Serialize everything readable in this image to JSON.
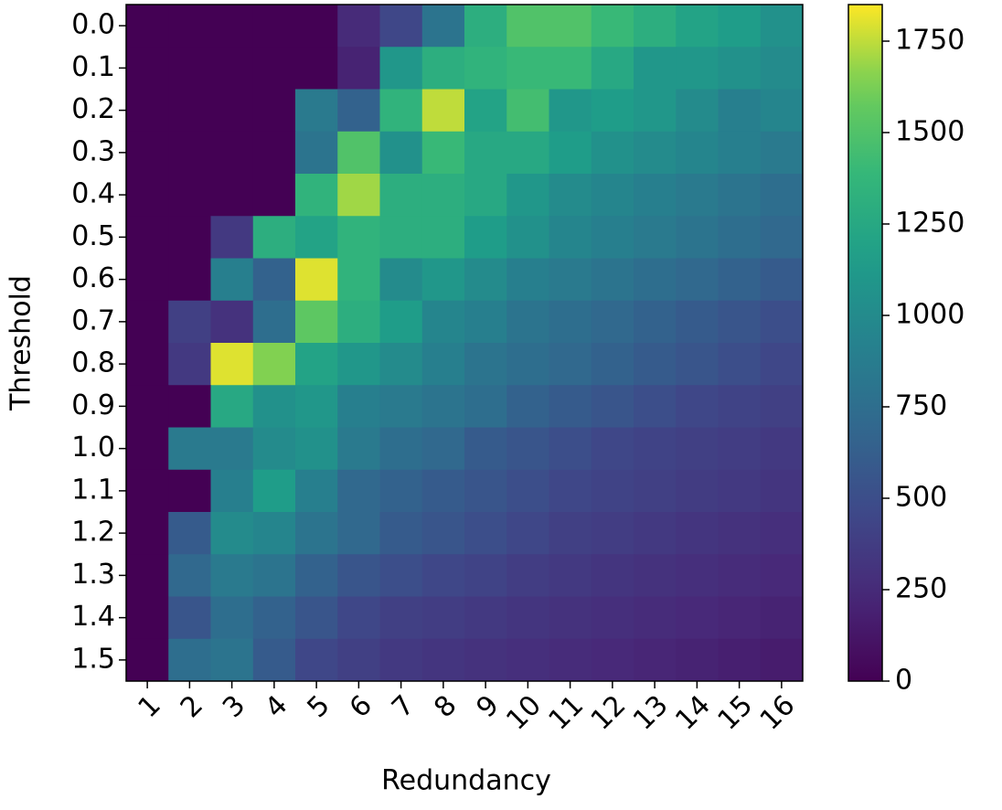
{
  "chart_data": {
    "type": "heatmap",
    "xlabel": "Redundancy",
    "ylabel": "Threshold",
    "x_categories": [
      "1",
      "2",
      "3",
      "4",
      "5",
      "6",
      "7",
      "8",
      "9",
      "10",
      "11",
      "12",
      "13",
      "14",
      "15",
      "16"
    ],
    "y_categories": [
      "0.0",
      "0.1",
      "0.2",
      "0.3",
      "0.4",
      "0.5",
      "0.6",
      "0.7",
      "0.8",
      "0.9",
      "1.0",
      "1.1",
      "1.2",
      "1.3",
      "1.4",
      "1.5"
    ],
    "values": [
      [
        0,
        0,
        0,
        0,
        0,
        250,
        450,
        800,
        1300,
        1500,
        1500,
        1400,
        1300,
        1200,
        1150,
        1050
      ],
      [
        0,
        0,
        0,
        0,
        0,
        200,
        1100,
        1300,
        1350,
        1400,
        1400,
        1250,
        1100,
        1100,
        1050,
        1000
      ],
      [
        0,
        0,
        0,
        0,
        850,
        650,
        1350,
        1750,
        1200,
        1450,
        1100,
        1150,
        1100,
        1000,
        900,
        950
      ],
      [
        0,
        0,
        0,
        0,
        800,
        1500,
        1050,
        1400,
        1250,
        1250,
        1150,
        1050,
        1000,
        950,
        900,
        850
      ],
      [
        0,
        0,
        0,
        0,
        1350,
        1700,
        1300,
        1300,
        1250,
        1100,
        1000,
        950,
        900,
        850,
        800,
        750
      ],
      [
        0,
        0,
        350,
        1300,
        1200,
        1350,
        1300,
        1300,
        1150,
        1050,
        950,
        900,
        850,
        800,
        750,
        700
      ],
      [
        0,
        0,
        900,
        650,
        1800,
        1350,
        1000,
        1100,
        1000,
        900,
        850,
        800,
        750,
        700,
        650,
        600
      ],
      [
        0,
        400,
        300,
        750,
        1550,
        1300,
        1150,
        950,
        900,
        800,
        750,
        700,
        650,
        600,
        550,
        500
      ],
      [
        0,
        350,
        1800,
        1650,
        1200,
        1100,
        1000,
        900,
        800,
        750,
        700,
        650,
        600,
        550,
        500,
        450
      ],
      [
        0,
        0,
        1250,
        1050,
        1100,
        900,
        850,
        800,
        750,
        650,
        600,
        550,
        500,
        450,
        420,
        400
      ],
      [
        0,
        850,
        850,
        1000,
        1050,
        850,
        750,
        700,
        600,
        550,
        500,
        450,
        420,
        400,
        380,
        350
      ],
      [
        0,
        0,
        900,
        1150,
        900,
        700,
        650,
        600,
        550,
        500,
        450,
        420,
        400,
        370,
        350,
        320
      ],
      [
        0,
        600,
        1000,
        950,
        800,
        700,
        600,
        550,
        500,
        450,
        400,
        380,
        350,
        320,
        300,
        280
      ],
      [
        0,
        700,
        850,
        800,
        650,
        550,
        500,
        450,
        420,
        380,
        350,
        320,
        300,
        280,
        260,
        240
      ],
      [
        0,
        550,
        750,
        650,
        550,
        450,
        400,
        380,
        350,
        320,
        300,
        280,
        260,
        240,
        220,
        200
      ],
      [
        0,
        750,
        800,
        600,
        450,
        400,
        350,
        320,
        300,
        280,
        260,
        240,
        220,
        200,
        180,
        160
      ]
    ],
    "colormap": "viridis",
    "clim": [
      0,
      1850
    ],
    "cticks": [
      0,
      250,
      500,
      750,
      1000,
      1250,
      1500,
      1750
    ]
  }
}
